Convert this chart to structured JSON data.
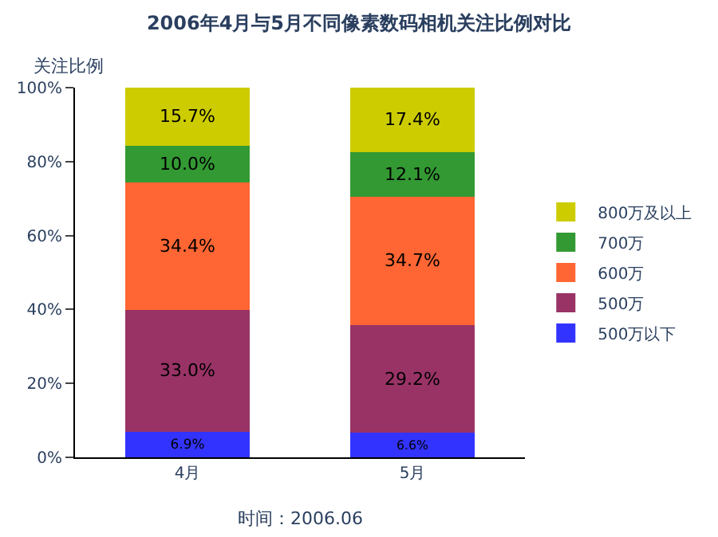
{
  "chart_data": {
    "type": "bar",
    "stacked": true,
    "title": "2006年4月与5月不同像素数码相机关注比例对比",
    "ylabel": "关注比例",
    "categories": [
      "4月",
      "5月"
    ],
    "series": [
      {
        "name": "500万以下",
        "color": "#3333ff",
        "values": [
          6.9,
          6.6
        ],
        "value_labels": [
          "6.9%",
          "6.6%"
        ]
      },
      {
        "name": "500万",
        "color": "#993366",
        "values": [
          33.0,
          29.2
        ],
        "value_labels": [
          "33.0%",
          "29.2%"
        ]
      },
      {
        "name": "600万",
        "color": "#ff6633",
        "values": [
          34.4,
          34.7
        ],
        "value_labels": [
          "34.4%",
          "34.7%"
        ]
      },
      {
        "name": "700万",
        "color": "#339933",
        "values": [
          10.0,
          12.1
        ],
        "value_labels": [
          "10.0%",
          "12.1%"
        ]
      },
      {
        "name": "800万及以上",
        "color": "#cccc00",
        "values": [
          15.7,
          17.4
        ],
        "value_labels": [
          "15.7%",
          "17.4%"
        ]
      }
    ],
    "ylim": [
      0,
      100
    ],
    "yticks": [
      {
        "value": 0,
        "label": "0%"
      },
      {
        "value": 20,
        "label": "20%"
      },
      {
        "value": 40,
        "label": "40%"
      },
      {
        "value": 60,
        "label": "60%"
      },
      {
        "value": 80,
        "label": "80%"
      },
      {
        "value": 100,
        "label": "100%"
      }
    ],
    "grid": false,
    "legend": "right",
    "annotations": [
      "时间：2006.06"
    ]
  }
}
